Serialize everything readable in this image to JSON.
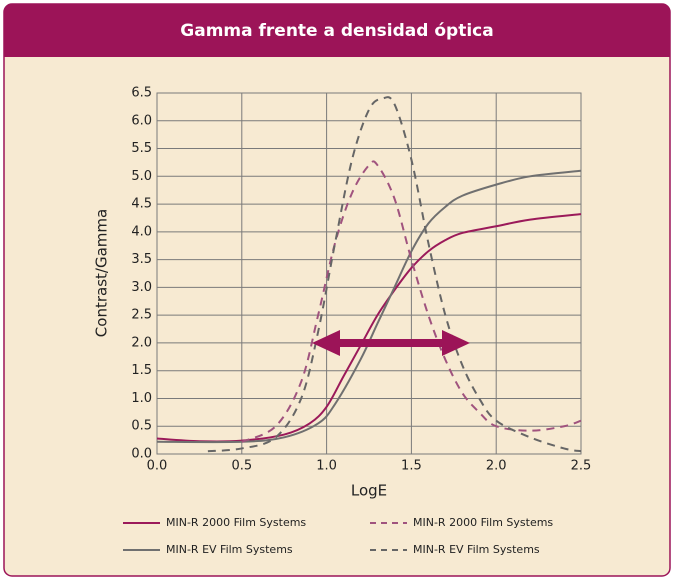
{
  "chart_data": {
    "type": "line",
    "title": "Gamma frente a densidad óptica",
    "x_label": "LogE",
    "y_label": "Contrast/Gamma",
    "xlim": [
      0,
      2.5
    ],
    "ylim": [
      0,
      6.5
    ],
    "xticks": [
      {
        "value": 0,
        "label": "0.0"
      },
      {
        "value": 0.5,
        "label": "0.5"
      },
      {
        "value": 1,
        "label": "1.0"
      },
      {
        "value": 1.5,
        "label": "1.5"
      },
      {
        "value": 2,
        "label": "2.0"
      },
      {
        "value": 2.5,
        "label": "2.5"
      }
    ],
    "yticks": [
      {
        "value": 0,
        "label": "0.0"
      },
      {
        "value": 0.5,
        "label": "0.5"
      },
      {
        "value": 1,
        "label": "1.0"
      },
      {
        "value": 1.5,
        "label": "1.5"
      },
      {
        "value": 2,
        "label": "2.0"
      },
      {
        "value": 2.5,
        "label": "2.5"
      },
      {
        "value": 3,
        "label": "3.0"
      },
      {
        "value": 3.5,
        "label": "3.5"
      },
      {
        "value": 4,
        "label": "4.0"
      },
      {
        "value": 4.5,
        "label": "4.5"
      },
      {
        "value": 5,
        "label": "5.0"
      },
      {
        "value": 5.5,
        "label": "5.5"
      },
      {
        "value": 6,
        "label": "6.0"
      },
      {
        "value": 6.5,
        "label": "6.5"
      }
    ],
    "grid": true,
    "series": [
      {
        "name": "MIN-R 2000 Film Systems",
        "color": "#9b1a5a",
        "dash": false,
        "x": [
          0,
          0.25,
          0.5,
          0.75,
          0.9,
          1.0,
          1.1,
          1.2,
          1.3,
          1.4,
          1.5,
          1.6,
          1.7,
          1.8,
          2.0,
          2.2,
          2.5
        ],
        "values": [
          0.28,
          0.23,
          0.24,
          0.35,
          0.55,
          0.85,
          1.4,
          1.95,
          2.5,
          2.95,
          3.35,
          3.65,
          3.85,
          3.98,
          4.1,
          4.22,
          4.32
        ]
      },
      {
        "name": "MIN-R EV Film Systems",
        "color": "#707070",
        "dash": false,
        "x": [
          0,
          0.5,
          0.75,
          0.95,
          1.05,
          1.2,
          1.3,
          1.4,
          1.5,
          1.6,
          1.7,
          1.8,
          2.0,
          2.2,
          2.5
        ],
        "values": [
          0.22,
          0.22,
          0.3,
          0.55,
          0.9,
          1.7,
          2.35,
          3.0,
          3.65,
          4.15,
          4.45,
          4.65,
          4.85,
          5.0,
          5.1
        ]
      },
      {
        "name": "MIN-R 2000 Film Systems",
        "color": "#a0537e",
        "dash": true,
        "x": [
          0.5,
          0.7,
          0.85,
          0.95,
          1.05,
          1.15,
          1.25,
          1.3,
          1.4,
          1.5,
          1.6,
          1.7,
          1.8,
          1.9,
          2.0,
          2.2,
          2.4,
          2.5
        ],
        "values": [
          0.22,
          0.5,
          1.3,
          2.5,
          3.8,
          4.7,
          5.2,
          5.2,
          4.6,
          3.5,
          2.5,
          1.7,
          1.1,
          0.75,
          0.5,
          0.42,
          0.5,
          0.6
        ]
      },
      {
        "name": "MIN-R EV Film Systems",
        "color": "#666666",
        "dash": true,
        "x": [
          0.3,
          0.5,
          0.7,
          0.85,
          0.95,
          1.05,
          1.15,
          1.25,
          1.33,
          1.4,
          1.5,
          1.6,
          1.7,
          1.8,
          1.9,
          2.0,
          2.2,
          2.4,
          2.5
        ],
        "values": [
          0.05,
          0.1,
          0.3,
          1.0,
          2.2,
          3.8,
          5.3,
          6.2,
          6.4,
          6.3,
          5.3,
          3.8,
          2.5,
          1.6,
          1.0,
          0.6,
          0.3,
          0.1,
          0.05
        ]
      }
    ]
  }
}
